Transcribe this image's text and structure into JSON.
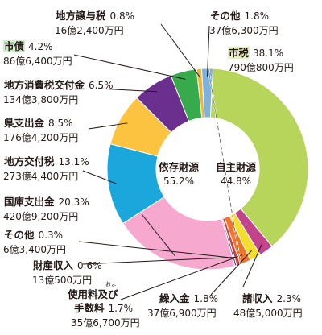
{
  "chart_data": {
    "type": "pie",
    "title": "",
    "unit": "%",
    "center": [
      {
        "label": "依存財源",
        "value": "55.2%"
      },
      {
        "label": "自主財源",
        "value": "44.8%"
      }
    ],
    "slices": [
      {
        "name": "市税",
        "percent": "38.1%",
        "amount": "790億800万円",
        "value": 38.1,
        "color": "#b6d55a",
        "group": "自主財源"
      },
      {
        "name": "諸収入",
        "percent": "2.3%",
        "amount": "48億5,000万円",
        "value": 2.3,
        "color": "#c1448d",
        "group": "自主財源"
      },
      {
        "name": "繰入金",
        "percent": "1.8%",
        "amount": "37億6,900万円",
        "value": 1.8,
        "color": "#f4de2c",
        "group": "自主財源"
      },
      {
        "name": "使用料及び手数料",
        "name_line1": "使用料及び",
        "name_line2": "手数料",
        "ruby": "およ",
        "percent": "1.7%",
        "amount": "35億6,700万円",
        "value": 1.7,
        "color": "#f0752b",
        "group": "自主財源"
      },
      {
        "name": "財産収入",
        "percent": "0.6%",
        "amount": "13億500万円",
        "value": 0.6,
        "color": "#d73a35",
        "group": "自主財源"
      },
      {
        "name": "その他",
        "percent": "0.3%",
        "amount": "6億3,400万円",
        "value": 0.3,
        "color": "#2b61ad",
        "group": "自主財源"
      },
      {
        "name": "国庫支出金",
        "percent": "20.3%",
        "amount": "420億9,200万円",
        "value": 20.3,
        "color": "#f6a8cf",
        "group": "依存財源"
      },
      {
        "name": "地方交付税",
        "percent": "13.1%",
        "amount": "273億4,400万円",
        "value": 13.1,
        "color": "#1ba6dc",
        "group": "依存財源"
      },
      {
        "name": "県支出金",
        "percent": "8.5%",
        "amount": "176億4,200万円",
        "value": 8.5,
        "color": "#fbc33f",
        "group": "依存財源"
      },
      {
        "name": "地方消費税交付金",
        "percent": "6.5%",
        "amount": "134億3,800万円",
        "value": 6.5,
        "color": "#6b2f8e",
        "group": "依存財源"
      },
      {
        "name": "市債",
        "percent": "4.2%",
        "amount": "86億6,400万円",
        "value": 4.2,
        "color": "#37aa4b",
        "group": "依存財源"
      },
      {
        "name": "地方譲与税",
        "percent": "0.8%",
        "amount": "16億2,400万円",
        "value": 0.8,
        "color": "#f0b43b",
        "group": "依存財源"
      },
      {
        "name": "その他",
        "percent": "1.8%",
        "amount": "37億6,300万円",
        "value": 1.8,
        "color": "#7eb2db",
        "group": "依存財源"
      }
    ]
  }
}
